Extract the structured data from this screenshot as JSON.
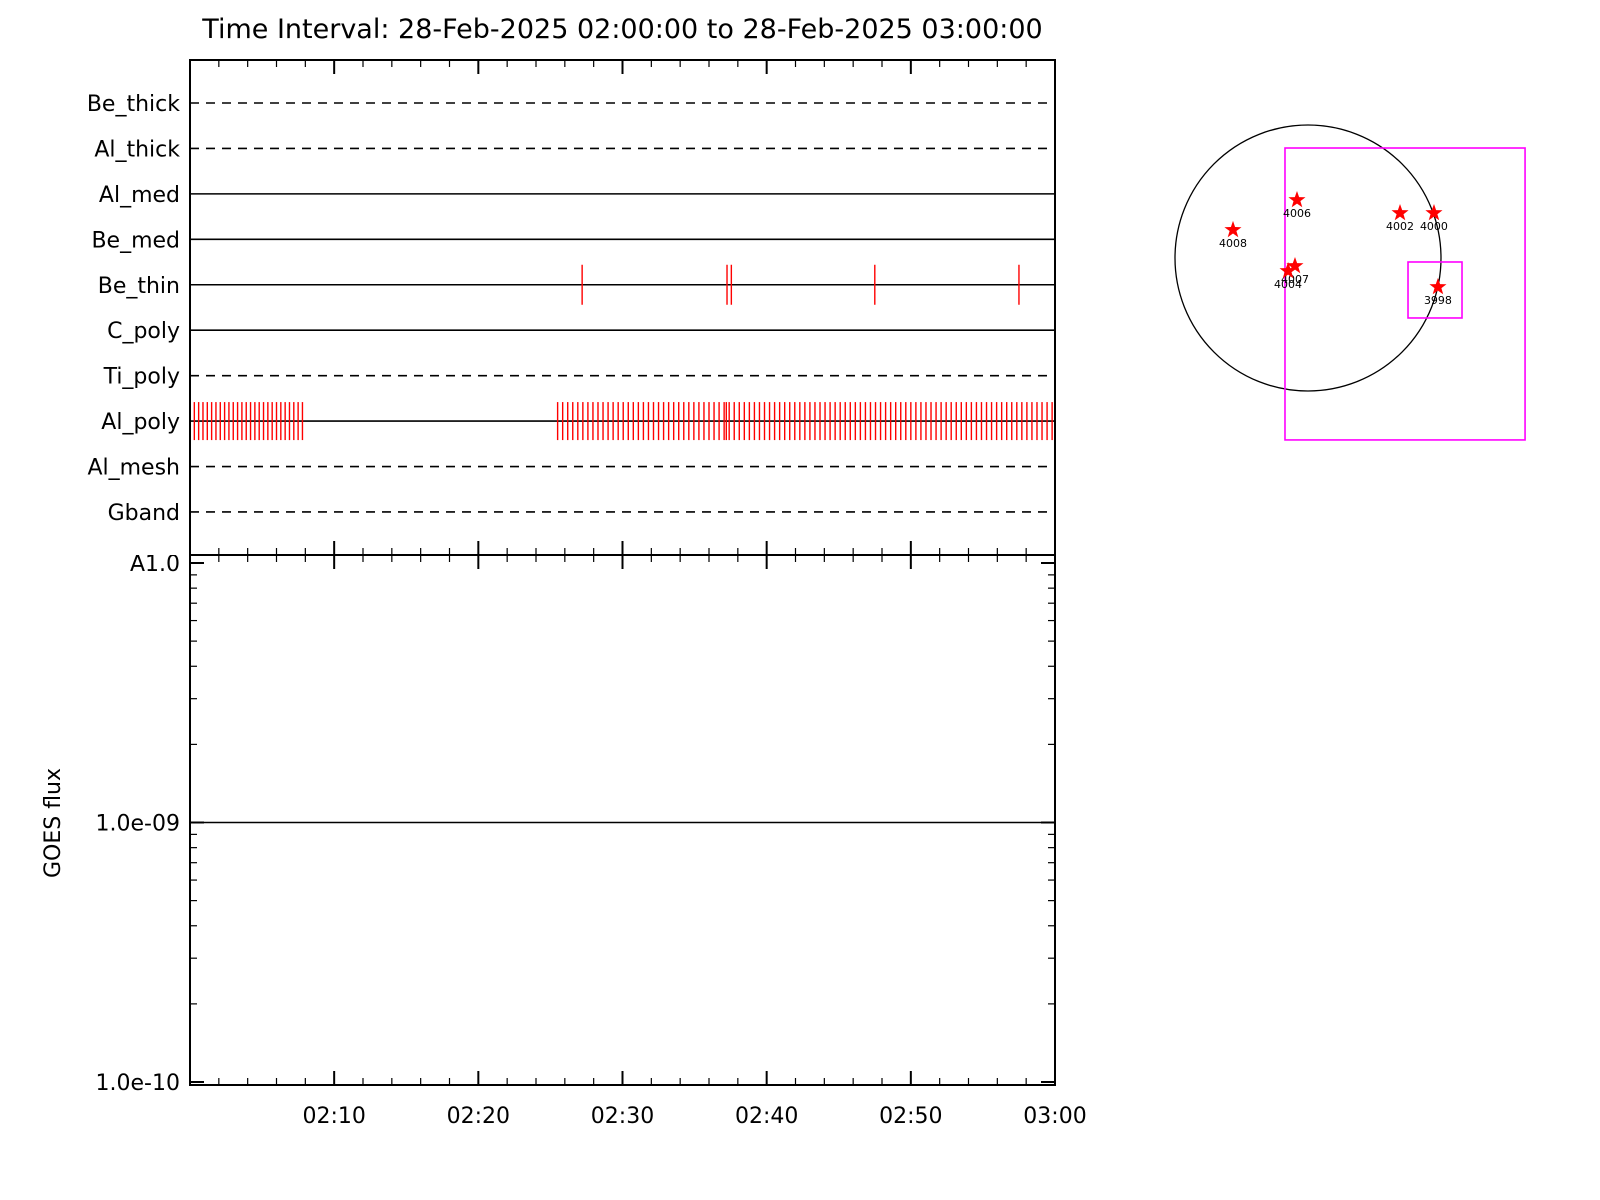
{
  "title": "Time Interval: 28-Feb-2025 02:00:00 to 28-Feb-2025 03:00:00",
  "colors": {
    "axis": "#000000",
    "exposure_tick": "#ff0000",
    "star": "#ff0000",
    "fov_box": "#ff00ff"
  },
  "chart_data": [
    {
      "type": "timeline",
      "name": "xrt-filter-exposure-timeline",
      "x_range_minutes": [
        0,
        60
      ],
      "x_start_label": "02:00",
      "x_end_label": "03:00",
      "x_major_tick_minutes": 10,
      "x_minor_tick_minutes": 2,
      "rows": [
        {
          "label": "Be_thick",
          "line_style": "dashed",
          "exposures_min": []
        },
        {
          "label": "Al_thick",
          "line_style": "dashed",
          "exposures_min": []
        },
        {
          "label": "Al_med",
          "line_style": "solid",
          "exposures_min": []
        },
        {
          "label": "Be_med",
          "line_style": "solid",
          "exposures_min": []
        },
        {
          "label": "Be_thin",
          "line_style": "solid",
          "tick_half_height": 20,
          "exposures_min": [
            27.2,
            37.25,
            37.55,
            47.5,
            57.5
          ]
        },
        {
          "label": "C_poly",
          "line_style": "solid",
          "exposures_min": []
        },
        {
          "label": "Ti_poly",
          "line_style": "dashed",
          "exposures_min": []
        },
        {
          "label": "Al_poly",
          "line_style": "solid",
          "tick_half_height": 19,
          "exposures_min": [
            0.3,
            0.6,
            0.9,
            1.2,
            1.5,
            1.8,
            2.1,
            2.4,
            2.7,
            3.0,
            3.3,
            3.6,
            3.9,
            4.2,
            4.5,
            4.8,
            5.1,
            5.4,
            5.7,
            6.0,
            6.3,
            6.6,
            6.9,
            7.2,
            7.5,
            7.8,
            25.5,
            25.85,
            26.2,
            26.55,
            26.9,
            27.25,
            27.6,
            27.95,
            28.3,
            28.65,
            29.0,
            29.35,
            29.7,
            30.05,
            30.4,
            30.75,
            31.1,
            31.45,
            31.8,
            32.15,
            32.5,
            32.85,
            33.2,
            33.55,
            33.9,
            34.25,
            34.6,
            34.95,
            35.3,
            35.65,
            36.0,
            36.35,
            36.7,
            37.05,
            37.2,
            37.4,
            37.75,
            38.1,
            38.45,
            38.8,
            39.15,
            39.5,
            39.85,
            40.2,
            40.55,
            40.9,
            41.25,
            41.6,
            41.95,
            42.3,
            42.65,
            43.0,
            43.35,
            43.7,
            44.05,
            44.4,
            44.75,
            45.1,
            45.45,
            45.8,
            46.15,
            46.5,
            46.85,
            47.2,
            47.55,
            47.9,
            48.25,
            48.6,
            48.95,
            49.3,
            49.65,
            50.0,
            50.35,
            50.7,
            51.05,
            51.4,
            51.75,
            52.1,
            52.45,
            52.8,
            53.15,
            53.5,
            53.85,
            54.2,
            54.55,
            54.9,
            55.25,
            55.6,
            55.95,
            56.3,
            56.65,
            57.0,
            57.35,
            57.7,
            58.05,
            58.4,
            58.75,
            59.1,
            59.45,
            59.8
          ]
        },
        {
          "label": "Al_mesh",
          "line_style": "dashed",
          "exposures_min": []
        },
        {
          "label": "Gband",
          "line_style": "dashed",
          "exposures_min": []
        }
      ]
    },
    {
      "type": "line",
      "name": "goes-flux-plot",
      "ylabel": "GOES flux",
      "yscale": "log",
      "ylim": [
        1e-10,
        1e-08
      ],
      "yticks": [
        {
          "value": 1e-08,
          "label": "A1.0"
        },
        {
          "value": 1e-09,
          "label": "1.0e-09"
        },
        {
          "value": 1e-10,
          "label": "1.0e-10"
        }
      ],
      "xticks": [
        {
          "minute": 10,
          "label": "02:10"
        },
        {
          "minute": 20,
          "label": "02:20"
        },
        {
          "minute": 30,
          "label": "02:30"
        },
        {
          "minute": 40,
          "label": "02:40"
        },
        {
          "minute": 50,
          "label": "02:50"
        },
        {
          "minute": 60,
          "label": "03:00"
        }
      ],
      "series": [
        {
          "name": "GOES flux",
          "style": "constant-line",
          "value": 1e-09
        }
      ]
    },
    {
      "type": "solar-map",
      "name": "active-region-disk-map",
      "coordinate_note": "positions in units of solar radius, y positive downward",
      "regions": [
        {
          "noaa": "4008",
          "x": -0.564,
          "y": -0.211
        },
        {
          "noaa": "4006",
          "x": -0.083,
          "y": -0.436
        },
        {
          "noaa": "4002",
          "x": 0.692,
          "y": -0.338
        },
        {
          "noaa": "4000",
          "x": 0.947,
          "y": -0.338
        },
        {
          "noaa": "4007",
          "x": -0.098,
          "y": 0.06
        },
        {
          "noaa": "4004",
          "x": -0.15,
          "y": 0.098
        },
        {
          "noaa": "3998",
          "x": 0.977,
          "y": 0.218
        }
      ],
      "fov_boxes": [
        {
          "x1": -0.173,
          "y1": -0.827,
          "x2": 1.632,
          "y2": 1.368
        },
        {
          "x1": 0.752,
          "y1": 0.03,
          "x2": 1.158,
          "y2": 0.451
        }
      ]
    }
  ]
}
